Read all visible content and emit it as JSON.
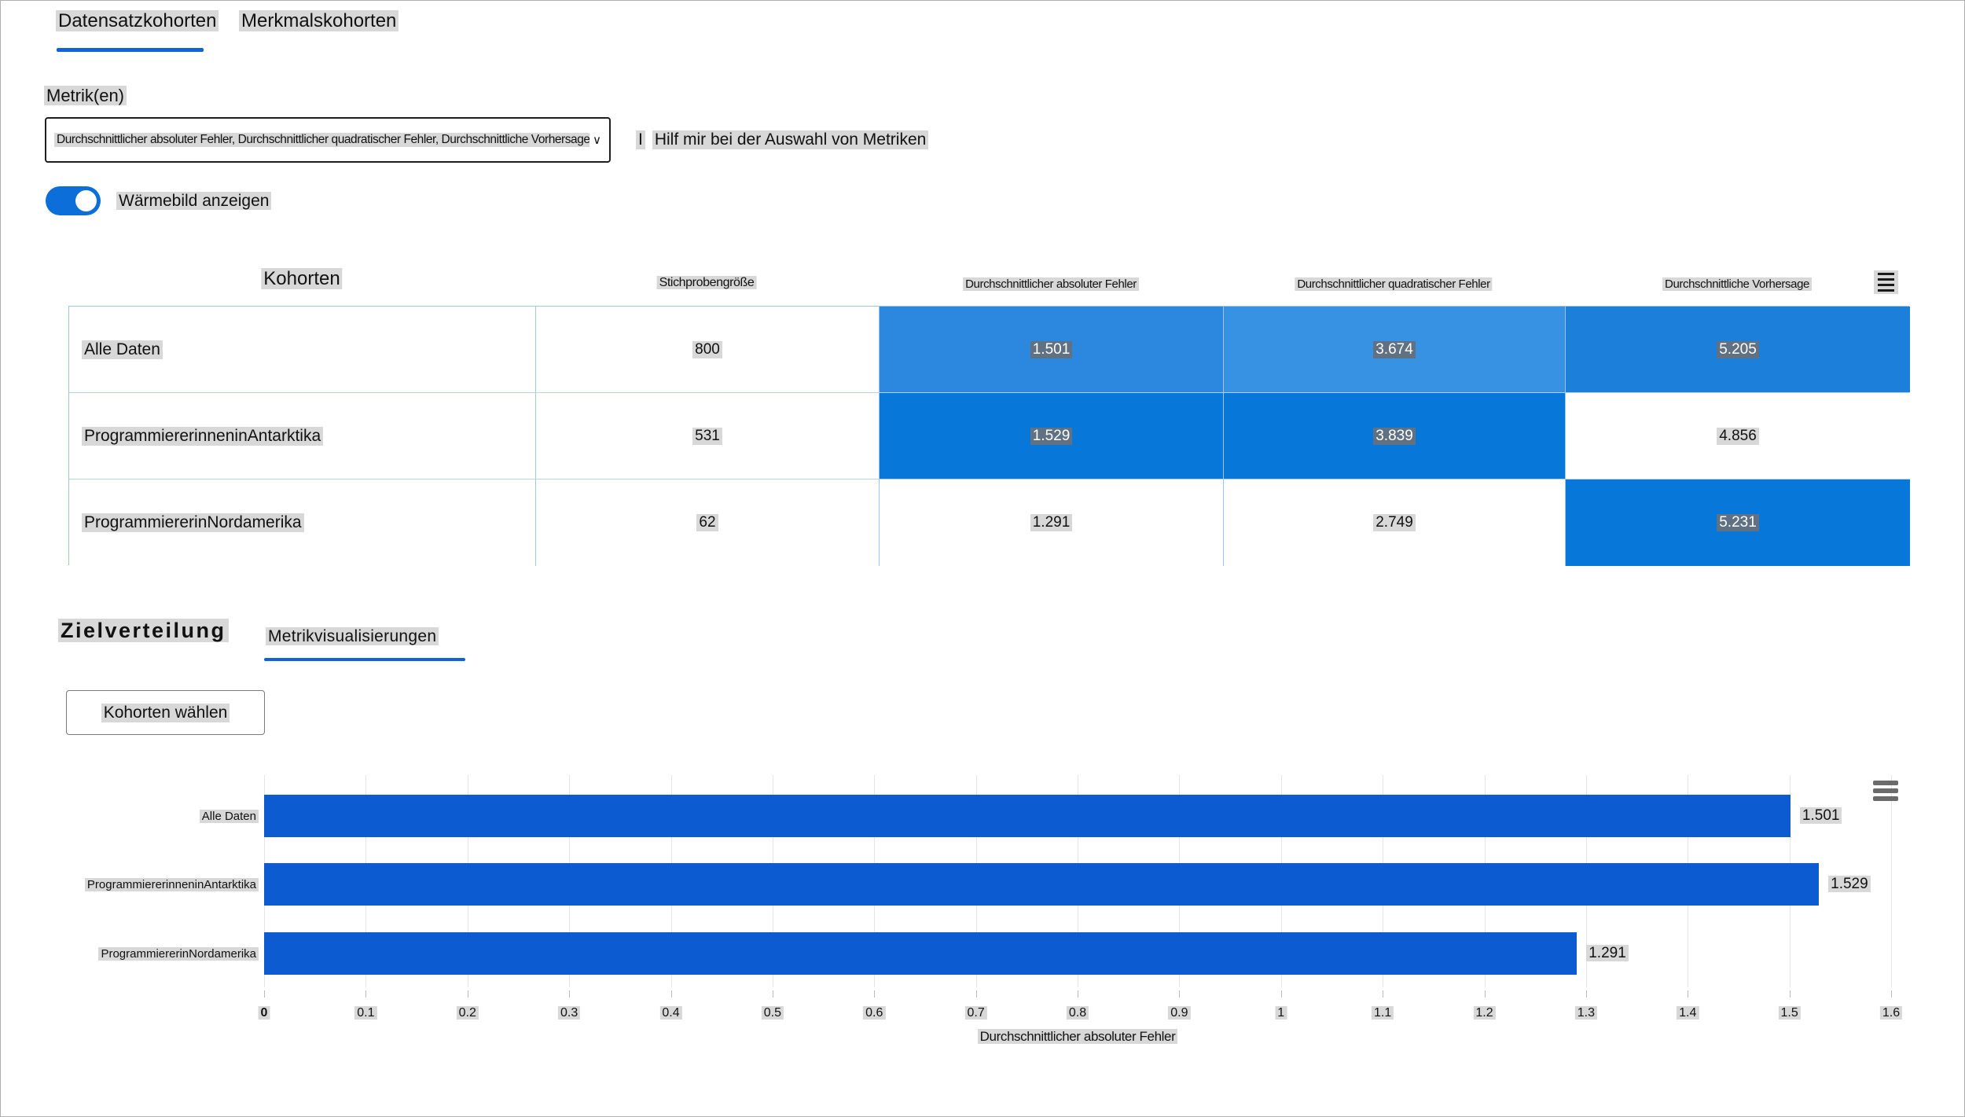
{
  "header_tabs": {
    "dataset_label": "Datensatzkohorten",
    "feature_label": "Merkmalskohorten"
  },
  "metric_picker": {
    "label": "Metrik(en)",
    "value": "Durchschnittlicher absoluter Fehler, Durchschnittlicher quadratischer Fehler, Durchschnittliche Vorhersage ...",
    "chevron": "∨",
    "help_icon": "I",
    "help_label": "Hilf mir bei der Auswahl von Metriken"
  },
  "heatmap_toggle": {
    "label": "Wärmebild anzeigen",
    "state": "on"
  },
  "cohort_table": {
    "headers": {
      "cohorts": "Kohorten",
      "sample_size": "Stichprobengröße",
      "mae": "Durchschnittlicher absoluter Fehler",
      "mse": "Durchschnittlicher quadratischer Fehler",
      "mean_pred": "Durchschnittliche Vorhersage"
    },
    "rows": [
      {
        "name": "Alle Daten",
        "sample_size": "800",
        "mae": "1.501",
        "mse": "3.674",
        "mean_pred": "5.205",
        "mae_bg": "#2b88de",
        "mse_bg": "#3892e3",
        "mean_pred_bg": "#1c7fda"
      },
      {
        "name": "ProgrammiererinneninAntarktika",
        "sample_size": "531",
        "mae": "1.529",
        "mse": "3.839",
        "mean_pred": "4.856",
        "mae_bg": "#0778d9",
        "mse_bg": "#0778d9",
        "mean_pred_bg": "#ffffff"
      },
      {
        "name": "ProgrammiererinNordamerika",
        "sample_size": "62",
        "mae": "1.291",
        "mse": "2.749",
        "mean_pred": "5.231",
        "mae_bg": "#ffffff",
        "mse_bg": "#ffffff",
        "mean_pred_bg": "#0778d9"
      }
    ]
  },
  "section_tabs": {
    "target_distribution": "Zielverteilung",
    "metric_visualizations": "Metrikvisualisierungen"
  },
  "cohort_select_button": "Kohorten wählen",
  "chart_data": {
    "type": "bar",
    "orientation": "horizontal",
    "title": "",
    "categories": [
      "Alle Daten",
      "ProgrammiererinneninAntarktika",
      "ProgrammiererinNordamerika"
    ],
    "values": [
      1.501,
      1.529,
      1.291
    ],
    "value_labels": [
      "1.501",
      "1.529",
      "1.291"
    ],
    "xlabel": "Durchschnittlicher absoluter Fehler",
    "ylabel": "",
    "xlim": [
      0,
      1.6
    ],
    "xticks": [
      0,
      0.1,
      0.2,
      0.3,
      0.4,
      0.5,
      0.6,
      0.7,
      0.8,
      0.9,
      1,
      1.1,
      1.2,
      1.3,
      1.4,
      1.5,
      1.6
    ],
    "xtick_labels": [
      "0",
      "0.1",
      "0.2",
      "0.3",
      "0.4",
      "0.5",
      "0.6",
      "0.7",
      "0.8",
      "0.9",
      "1",
      "1.1",
      "1.2",
      "1.3",
      "1.4",
      "1.5",
      "1.6"
    ],
    "bar_color": "#0d5bd1",
    "grid": true,
    "legend": "none"
  },
  "colors": {
    "accent_blue": "#1263d9",
    "toggle_on": "#0b6ed9",
    "table_border": "#9dc3f0",
    "heatmap_dark_blue": "#0778d9",
    "bar_blue": "#0d5bd1"
  }
}
